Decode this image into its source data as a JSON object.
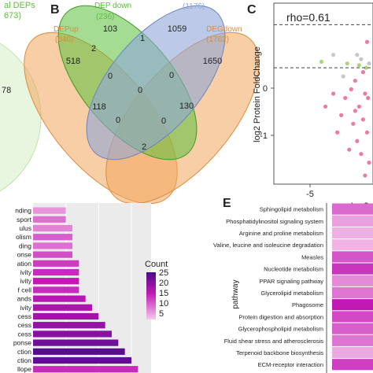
{
  "panelA": {
    "label_line1": "al DEPs",
    "label_line2": "673)",
    "value": "78"
  },
  "panelB": {
    "letter": "B",
    "sets": [
      {
        "name": "DEPup",
        "count": "(640)",
        "color": "#f0a35c"
      },
      {
        "name": "DEP down",
        "count": "(236)",
        "color": "#5bbf3a"
      },
      {
        "name": "",
        "count": "(1176)",
        "color": "#8fa6d9"
      },
      {
        "name": "DEGdown",
        "count": "(1762)",
        "color": "#f0a35c"
      }
    ],
    "regions": [
      "103",
      "1",
      "1059",
      "518",
      "2",
      "0",
      "1650",
      "0",
      "118",
      "0",
      "0",
      "130",
      "0",
      "2"
    ]
  },
  "panelC": {
    "letter": "C",
    "annotation": "rho=0.61",
    "ylabel": "log2 Protein FoldChange",
    "xlabel": "log2",
    "yticks": [
      "0",
      "-1"
    ],
    "xticks": [
      "-5"
    ]
  },
  "panelD": {
    "row_labels": [
      "nding",
      "sport",
      "ulus",
      "olism",
      "ding",
      "onse",
      "ation",
      "ivity",
      "ivity",
      "f cell",
      "ands",
      "ivity",
      "cess",
      "cess",
      "cess",
      "ponse",
      "ction",
      "ction",
      "llope"
    ],
    "legend_title": "Count",
    "legend_ticks": [
      "25",
      "20",
      "15",
      "10",
      "5"
    ]
  },
  "panelE": {
    "letter": "E",
    "axis_label": "pathway",
    "pathways": [
      "Sphingolipid metabolism",
      "Phosphatidylinositol signaling system",
      "Arginine and proline metabolism",
      "Valine, leucine and isoleucine degradation",
      "Measles",
      "Nucleotide metabolism",
      "PPAR signaling pathway",
      "Glycerolipid metabolism",
      "Phagosome",
      "Protein digestion and absorption",
      "Glycerophospholipid metabolism",
      "Fluid shear stress and atherosclerosis",
      "Terpenoid backbone biosynthesis",
      "ECM-receptor interaction"
    ]
  },
  "chart_data": [
    {
      "type": "scatter",
      "annotation": "rho=0.61",
      "ylabel": "log2 Protein FoldChange",
      "xlabel": "log2",
      "reference_lines_y": [
        0.25,
        -0.25
      ],
      "ylim": [
        -1.6,
        0.5
      ],
      "xlim": [
        -6,
        -1
      ],
      "points": [
        {
          "x": -1.3,
          "y": 0.05,
          "c": "#f06292"
        },
        {
          "x": -1.6,
          "y": -0.15,
          "c": "#bdbdbd"
        },
        {
          "x": -1.5,
          "y": -0.3,
          "c": "#f06292"
        },
        {
          "x": -1.9,
          "y": -0.4,
          "c": "#f06292"
        },
        {
          "x": -1.4,
          "y": -0.55,
          "c": "#f06292"
        },
        {
          "x": -2.1,
          "y": -0.5,
          "c": "#f06292"
        },
        {
          "x": -1.7,
          "y": -0.7,
          "c": "#f06292"
        },
        {
          "x": -2.4,
          "y": -0.6,
          "c": "#f06292"
        },
        {
          "x": -1.5,
          "y": -0.85,
          "c": "#f06292"
        },
        {
          "x": -2.0,
          "y": -0.9,
          "c": "#f06292"
        },
        {
          "x": -1.3,
          "y": -1.0,
          "c": "#f06292"
        },
        {
          "x": -1.8,
          "y": -1.1,
          "c": "#f06292"
        },
        {
          "x": -2.6,
          "y": -0.8,
          "c": "#f06292"
        },
        {
          "x": -1.6,
          "y": -1.25,
          "c": "#f06292"
        },
        {
          "x": -1.2,
          "y": -1.35,
          "c": "#f06292"
        },
        {
          "x": -2.2,
          "y": -1.2,
          "c": "#f06292"
        },
        {
          "x": -3.0,
          "y": -0.55,
          "c": "#f06292"
        },
        {
          "x": -3.4,
          "y": -0.7,
          "c": "#f06292"
        },
        {
          "x": -2.8,
          "y": -1.0,
          "c": "#f06292"
        },
        {
          "x": -1.4,
          "y": -1.5,
          "c": "#f06292"
        },
        {
          "x": -2.5,
          "y": -0.35,
          "c": "#bdbdbd"
        },
        {
          "x": -1.2,
          "y": -0.2,
          "c": "#bdbdbd"
        },
        {
          "x": -1.8,
          "y": -0.1,
          "c": "#bdbdbd"
        },
        {
          "x": -3.0,
          "y": -0.1,
          "c": "#bdbdbd"
        },
        {
          "x": -1.35,
          "y": -0.25,
          "c": "#9ccc65"
        },
        {
          "x": -1.7,
          "y": -0.22,
          "c": "#9ccc65"
        },
        {
          "x": -2.3,
          "y": -0.2,
          "c": "#9ccc65"
        },
        {
          "x": -3.6,
          "y": -0.18,
          "c": "#9ccc65"
        },
        {
          "x": -1.25,
          "y": -0.6,
          "c": "#f06292"
        },
        {
          "x": -1.9,
          "y": -0.75,
          "c": "#f06292"
        }
      ]
    },
    {
      "type": "bar",
      "categories": [
        "nding",
        "sport",
        "ulus",
        "olism",
        "ding",
        "onse",
        "ation",
        "ivity",
        "ivity",
        "f cell",
        "ands",
        "ivity",
        "cess",
        "cess",
        "cess",
        "ponse",
        "ction",
        "ction",
        "llope"
      ],
      "values": [
        5,
        5,
        6,
        6,
        6,
        6,
        7,
        7,
        7,
        7,
        8,
        9,
        10,
        11,
        12,
        13,
        14,
        15,
        16
      ],
      "counts": [
        8,
        10,
        9,
        11,
        10,
        12,
        13,
        14,
        15,
        14,
        16,
        17,
        18,
        19,
        20,
        22,
        24,
        23,
        14
      ],
      "legend_title": "Count",
      "color_range": [
        5,
        25
      ]
    },
    {
      "type": "heatmap",
      "categories": [
        "Sphingolipid metabolism",
        "Phosphatidylinositol signaling system",
        "Arginine and proline metabolism",
        "Valine, leucine and isoleucine degradation",
        "Measles",
        "Nucleotide metabolism",
        "PPAR signaling pathway",
        "Glycerolipid metabolism",
        "Phagosome",
        "Protein digestion and absorption",
        "Glycerophospholipid metabolism",
        "Fluid shear stress and atherosclerosis",
        "Terpenoid backbone biosynthesis",
        "ECM-receptor interaction"
      ],
      "values": [
        0.45,
        0.2,
        0.12,
        0.1,
        0.55,
        0.7,
        0.3,
        0.4,
        0.85,
        0.6,
        0.5,
        0.4,
        0.15,
        0.65
      ],
      "ylabel": "pathway"
    }
  ]
}
